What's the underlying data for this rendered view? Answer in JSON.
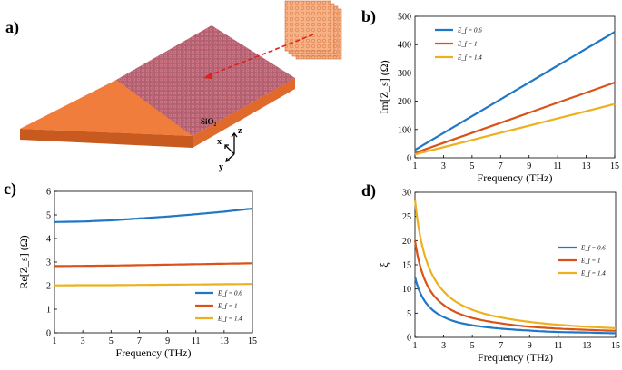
{
  "panel_labels": {
    "a": "a)",
    "b": "b)",
    "c": "c)",
    "d": "d)"
  },
  "panel_a": {
    "substrate_label": "SiO₂",
    "axes": {
      "x": "x",
      "y": "y",
      "z": "z"
    }
  },
  "colors": {
    "blue": "#1f77c6",
    "orange": "#d95319",
    "yellow": "#edb120",
    "substrate": "#f07a3a",
    "graphene": "#a05070"
  },
  "chart_data": [
    {
      "id": "b",
      "type": "line",
      "xlabel": "Frequency (THz)",
      "ylabel": "Im[Z_s] (Ω)",
      "xlim": [
        1,
        15
      ],
      "ylim": [
        0,
        500
      ],
      "xticks": [
        1,
        3,
        5,
        7,
        9,
        11,
        13,
        15
      ],
      "yticks": [
        0,
        100,
        200,
        300,
        400,
        500
      ],
      "legend_position": "top-left",
      "series": [
        {
          "name": "E_f = 0.6",
          "color": "#1f77c6",
          "x": [
            1,
            15
          ],
          "y": [
            28,
            445
          ]
        },
        {
          "name": "E_f = 1",
          "color": "#d95319",
          "x": [
            1,
            15
          ],
          "y": [
            17,
            266
          ]
        },
        {
          "name": "E_f = 1.4",
          "color": "#edb120",
          "x": [
            1,
            15
          ],
          "y": [
            12,
            190
          ]
        }
      ]
    },
    {
      "id": "c",
      "type": "line",
      "xlabel": "Frequency (THz)",
      "ylabel": "Re[Z_s] (Ω)",
      "xlim": [
        1,
        15
      ],
      "ylim": [
        0,
        6
      ],
      "xticks": [
        1,
        3,
        5,
        7,
        9,
        11,
        13,
        15
      ],
      "yticks": [
        0,
        1,
        2,
        3,
        4,
        5,
        6
      ],
      "legend_position": "bottom-right",
      "series": [
        {
          "name": "E_f = 0.6",
          "color": "#1f77c6",
          "x": [
            1,
            3,
            5,
            7,
            9,
            11,
            13,
            15
          ],
          "y": [
            4.7,
            4.72,
            4.77,
            4.85,
            4.93,
            5.03,
            5.14,
            5.27
          ]
        },
        {
          "name": "E_f = 1",
          "color": "#d95319",
          "x": [
            1,
            3,
            5,
            7,
            9,
            11,
            13,
            15
          ],
          "y": [
            2.83,
            2.84,
            2.85,
            2.87,
            2.89,
            2.91,
            2.93,
            2.95
          ]
        },
        {
          "name": "E_f = 1.4",
          "color": "#edb120",
          "x": [
            1,
            3,
            5,
            7,
            9,
            11,
            13,
            15
          ],
          "y": [
            2.01,
            2.02,
            2.02,
            2.03,
            2.04,
            2.05,
            2.06,
            2.07
          ]
        }
      ]
    },
    {
      "id": "d",
      "type": "line",
      "xlabel": "Frequency (THz)",
      "ylabel": "ξ",
      "xlim": [
        1,
        15
      ],
      "ylim": [
        0,
        30
      ],
      "xticks": [
        1,
        3,
        5,
        7,
        9,
        11,
        13,
        15
      ],
      "yticks": [
        0,
        5,
        10,
        15,
        20,
        25,
        30
      ],
      "legend_position": "center-right",
      "series": [
        {
          "name": "E_f = 0.6",
          "color": "#1f77c6",
          "x": [
            1,
            1.5,
            2,
            3,
            4,
            5,
            7,
            9,
            11,
            13,
            15
          ],
          "y": [
            12.5,
            8.4,
            6.3,
            4.2,
            3.1,
            2.5,
            1.8,
            1.4,
            1.1,
            1.0,
            0.85
          ]
        },
        {
          "name": "E_f = 1",
          "color": "#d95319",
          "x": [
            1,
            1.5,
            2,
            3,
            4,
            5,
            7,
            9,
            11,
            13,
            15
          ],
          "y": [
            20,
            13.4,
            10,
            6.7,
            5,
            4,
            2.9,
            2.2,
            1.8,
            1.55,
            1.35
          ]
        },
        {
          "name": "E_f = 1.4",
          "color": "#edb120",
          "x": [
            1,
            1.5,
            2,
            3,
            4,
            5,
            7,
            9,
            11,
            13,
            15
          ],
          "y": [
            28.5,
            19,
            14.3,
            9.5,
            7.1,
            5.7,
            4.1,
            3.2,
            2.6,
            2.2,
            1.9
          ]
        }
      ]
    }
  ]
}
